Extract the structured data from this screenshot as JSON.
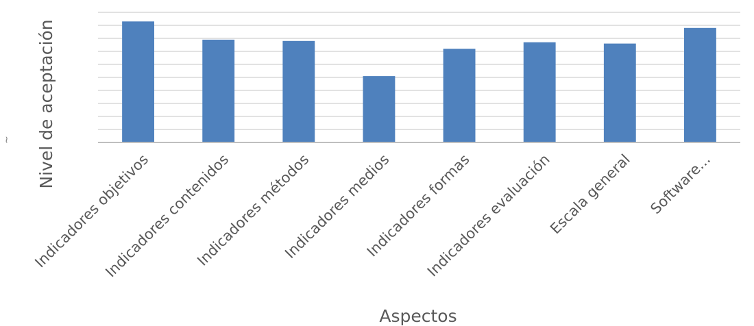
{
  "chart_data": {
    "type": "bar",
    "categories": [
      "Indicadores objetivos",
      "Indicadores contenidos",
      "Indicadores métodos",
      "Indicadores medios",
      "Indicadores formas",
      "Indicadores evaluación",
      "Escala general",
      "Software..."
    ],
    "values": [
      9.3,
      7.9,
      7.8,
      5.1,
      7.2,
      7.7,
      7.6,
      8.8
    ],
    "xlabel": "Aspectos",
    "ylabel": "Nivel de aceptación",
    "ylim": [
      0,
      10
    ],
    "y_gridlines": 10,
    "y_tick_labels_visible": false,
    "grid": true,
    "legend": "none",
    "colors": {
      "bar": "#4f81bd",
      "grid": "#d9d9d9",
      "text": "#595959"
    }
  }
}
